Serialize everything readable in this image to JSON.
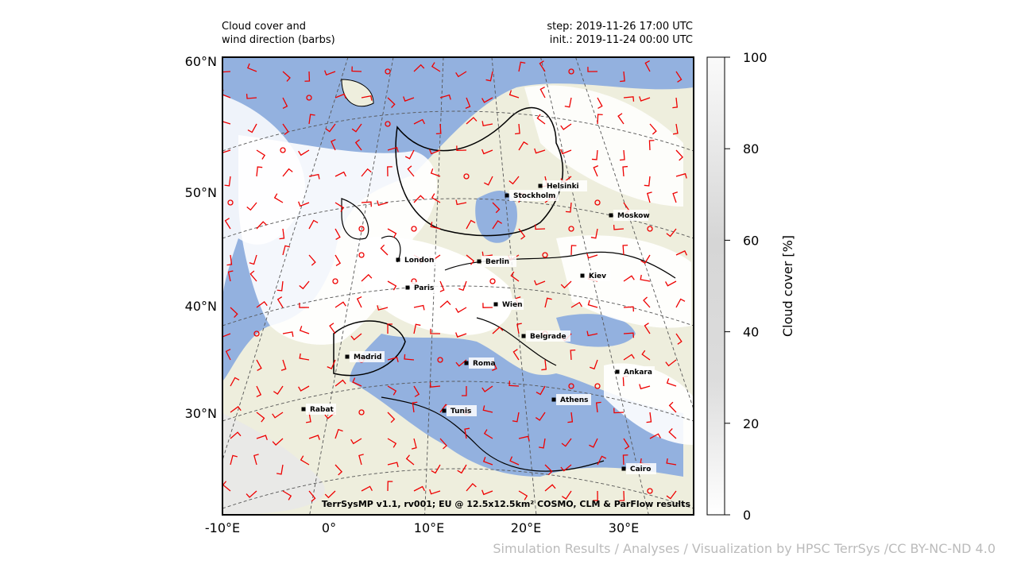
{
  "header": {
    "title_left": [
      "Cloud cover and",
      "wind direction (barbs)"
    ],
    "title_right": [
      "step: 2019-11-26 17:00 UTC",
      "init.: 2019-11-24 00:00 UTC"
    ]
  },
  "map": {
    "lat_labels": [
      "60°N",
      "50°N",
      "40°N",
      "30°N"
    ],
    "lon_labels": [
      "-10°E",
      "0°",
      "10°E",
      "20°E",
      "30°E"
    ],
    "cities": [
      "Helsinki",
      "Stockholm",
      "Moskow",
      "London",
      "Berlin",
      "Paris",
      "Kiev",
      "Wien",
      "Belgrade",
      "Madrid",
      "Roma",
      "Ankara",
      "Athens",
      "Rabat",
      "Tunis",
      "Cairo"
    ],
    "credit": "TerrSysMP v1.1, rv001; EU @ 12.5x12.5km² COSMO, CLM & ParFlow results"
  },
  "colorbar": {
    "label": "Cloud cover [%]",
    "lim": [
      0,
      100
    ],
    "ticks": [
      0,
      20,
      40,
      60,
      80,
      100
    ]
  },
  "footer": "Simulation Results / Analyses / Visualization by HPSC TerrSys /CC BY-NC-ND 4.0"
}
